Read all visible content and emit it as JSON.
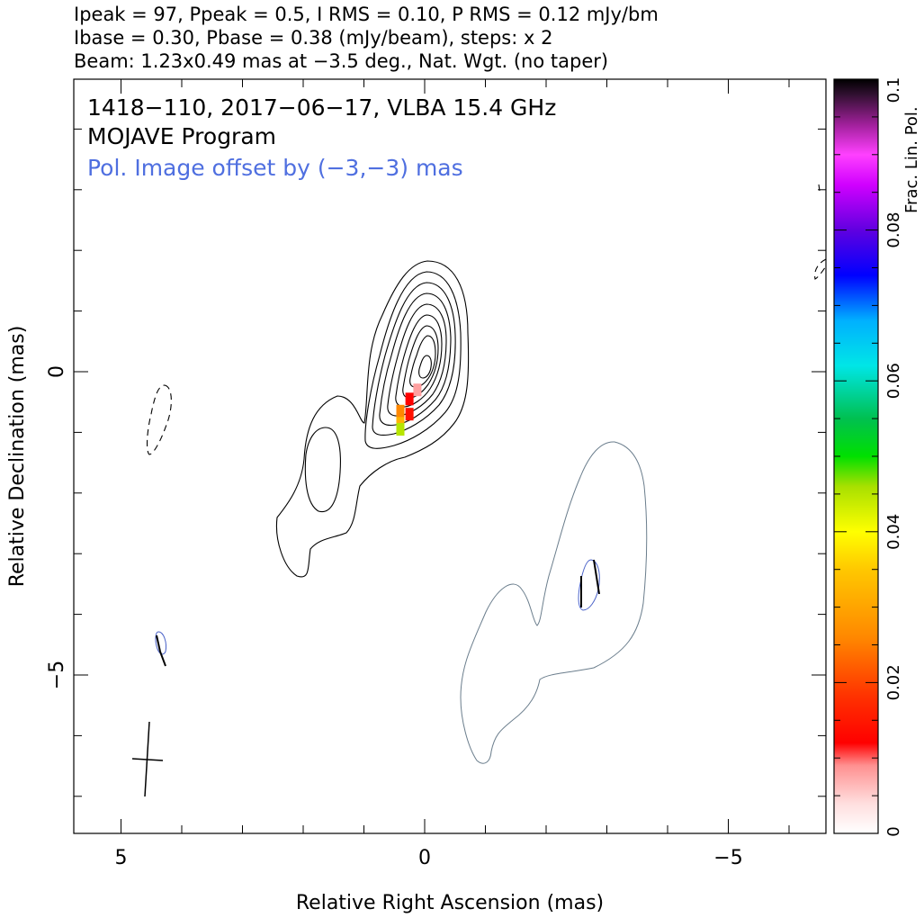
{
  "header": {
    "line1": "Ipeak = 97, Ppeak = 0.5, I RMS = 0.10, P RMS = 0.12 mJy/bm",
    "line2": "Ibase = 0.30, Pbase = 0.38 (mJy/beam), steps: x 2",
    "line3": "Beam: 1.23x0.49 mas at −3.5 deg., Nat. Wgt. (no taper)"
  },
  "plot": {
    "title_line1": "1418−110, 2017−06−17, VLBA 15.4 GHz",
    "title_line2": "MOJAVE Program",
    "title_line3": "Pol. Image offset by (−3,−3) mas"
  },
  "colors": {
    "stokes_i_contour": "#000000",
    "pol_contour": "#6a7d8c",
    "pol_offset_text": "#4f6fe0",
    "evpa_vector": "#000000"
  },
  "chart_data": {
    "type": "heatmap",
    "description_of_content": "Stokes I contours with fractional linear polarization color overlay",
    "xlabel": "Relative Right Ascension (mas)",
    "ylabel": "Relative Declination (mas)",
    "xlim": [
      6,
      -6.7
    ],
    "ylim": [
      -7.6,
      4.8
    ],
    "x_ticks": [
      5,
      0,
      -5
    ],
    "x_tick_labels": [
      "5",
      "0",
      "−5"
    ],
    "y_ticks": [
      0,
      -5
    ],
    "y_tick_labels": [
      "0",
      "−5"
    ],
    "colorbar": {
      "label": "Frac. Lin. Pol.",
      "range": [
        0,
        0.1
      ],
      "ticks": [
        0,
        0.02,
        0.04,
        0.06,
        0.08,
        0.1
      ],
      "tick_labels": [
        "0",
        "0.02",
        "0.04",
        "0.06",
        "0.08",
        "0.1"
      ]
    },
    "stokes_i_contour_levels_mJy": [
      0.3,
      0.6,
      1.2,
      2.4,
      4.8,
      9.6,
      19.2,
      38.4,
      76.8
    ],
    "peak_position_mas": [
      -0.1,
      0.1
    ],
    "beam": {
      "major_mas": 1.23,
      "minor_mas": 0.49,
      "pa_deg": -3.5
    },
    "fractional_polarization_pixels": [
      {
        "x": 0.12,
        "y": -0.3,
        "value": 0.008
      },
      {
        "x": 0.25,
        "y": -0.45,
        "value": 0.012
      },
      {
        "x": 0.25,
        "y": -0.7,
        "value": 0.014
      },
      {
        "x": 0.4,
        "y": -0.65,
        "value": 0.026
      },
      {
        "x": 0.4,
        "y": -0.85,
        "value": 0.032
      },
      {
        "x": 0.4,
        "y": -0.95,
        "value": 0.045
      }
    ],
    "negative_contours_mas": [
      {
        "x": 4.4,
        "y": -0.9
      },
      {
        "x": -6.6,
        "y": 1.7
      }
    ]
  }
}
